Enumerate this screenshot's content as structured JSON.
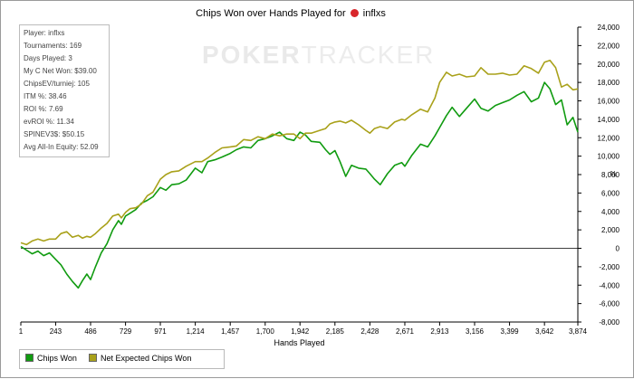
{
  "window": {
    "title_prefix": "Chips Won over Hands Played for",
    "player_name": "inflxs"
  },
  "stats_box": {
    "rows": [
      "Player: inflxs",
      "Tournaments: 169",
      "Days Played: 3",
      "My C Net Won: $39.00",
      "ChipsEV/turniej: 105",
      "ITM %: 38.46",
      "ROI %: 7.69",
      "evROI %: 11.34",
      "SPINEV3$: $50.15",
      "Avg All-In Equity: 52.09"
    ]
  },
  "watermark": {
    "part1": "POKER",
    "part2": "TRACKER"
  },
  "legend": {
    "items": [
      {
        "label": "Chips Won",
        "color": "#109b10"
      },
      {
        "label": "Net Expected Chips Won",
        "color": "#a9a11a"
      }
    ]
  },
  "chart_data": {
    "type": "line",
    "title": "Chips Won over Hands Played for inflxs",
    "xlabel": "Hands Played",
    "ylabel": "",
    "right_axis_unit": "%",
    "xlim": [
      1,
      3874
    ],
    "ylim": [
      -8000,
      24000
    ],
    "x_ticks": [
      1,
      243,
      486,
      729,
      971,
      1214,
      1457,
      1700,
      1942,
      2185,
      2428,
      2671,
      2913,
      3156,
      3399,
      3642,
      3874
    ],
    "x_tick_labels": [
      "1",
      "243",
      "486",
      "729",
      "971",
      "1,214",
      "1,457",
      "1,700",
      "1,942",
      "2,185",
      "2,428",
      "2,671",
      "2,913",
      "3,156",
      "3,399",
      "3,642",
      "3,874"
    ],
    "y_ticks": [
      -8000,
      -6000,
      -4000,
      -2000,
      0,
      2000,
      4000,
      6000,
      8000,
      10000,
      12000,
      14000,
      16000,
      18000,
      20000,
      22000,
      24000
    ],
    "y_tick_labels": [
      "-8,000",
      "-6,000",
      "-4,000",
      "-2,000",
      "0",
      "2,000",
      "4,000",
      "6,000",
      "8,000",
      "10,000",
      "12,000",
      "14,000",
      "16,000",
      "18,000",
      "20,000",
      "22,000",
      "24,000"
    ],
    "grid": false,
    "legend_position": "bottom-left",
    "series": [
      {
        "name": "Chips Won",
        "color": "#109b10",
        "x": [
          1,
          40,
          80,
          120,
          160,
          200,
          243,
          280,
          320,
          360,
          400,
          430,
          460,
          486,
          520,
          560,
          600,
          640,
          680,
          700,
          729,
          760,
          800,
          840,
          880,
          920,
          971,
          1010,
          1050,
          1100,
          1150,
          1214,
          1260,
          1300,
          1350,
          1400,
          1457,
          1500,
          1550,
          1600,
          1650,
          1700,
          1750,
          1800,
          1850,
          1900,
          1942,
          1980,
          2020,
          2080,
          2120,
          2150,
          2185,
          2220,
          2260,
          2300,
          2350,
          2400,
          2428,
          2460,
          2500,
          2550,
          2600,
          2650,
          2671,
          2720,
          2780,
          2830,
          2880,
          2913,
          2960,
          3000,
          3050,
          3100,
          3156,
          3200,
          3250,
          3300,
          3350,
          3399,
          3450,
          3500,
          3550,
          3600,
          3642,
          3680,
          3720,
          3760,
          3800,
          3840,
          3874
        ],
        "y": [
          200,
          -200,
          -600,
          -300,
          -800,
          -500,
          -1200,
          -1800,
          -2800,
          -3600,
          -4300,
          -3500,
          -2800,
          -3400,
          -2000,
          -500,
          500,
          2000,
          3000,
          2600,
          3500,
          3800,
          4200,
          4900,
          5200,
          5600,
          6600,
          6300,
          6900,
          7000,
          7400,
          8700,
          8200,
          9400,
          9600,
          9900,
          10300,
          10700,
          11000,
          10900,
          11700,
          11900,
          12200,
          12600,
          11900,
          11700,
          12600,
          12300,
          11600,
          11500,
          10700,
          10200,
          10600,
          9400,
          7800,
          9000,
          8700,
          8600,
          8100,
          7500,
          6900,
          8100,
          9000,
          9300,
          8900,
          10100,
          11300,
          11000,
          12200,
          13100,
          14400,
          15300,
          14300,
          15200,
          16200,
          15200,
          14900,
          15500,
          15800,
          16100,
          16600,
          17000,
          15900,
          16300,
          18000,
          17300,
          15600,
          16100,
          13400,
          14200,
          12600
        ]
      },
      {
        "name": "Net Expected Chips Won",
        "color": "#a9a11a",
        "x": [
          1,
          40,
          80,
          120,
          160,
          200,
          243,
          280,
          320,
          360,
          400,
          430,
          460,
          486,
          520,
          560,
          600,
          640,
          680,
          700,
          729,
          760,
          800,
          840,
          880,
          920,
          971,
          1010,
          1050,
          1100,
          1150,
          1214,
          1260,
          1300,
          1350,
          1400,
          1457,
          1500,
          1550,
          1600,
          1650,
          1700,
          1750,
          1800,
          1850,
          1900,
          1942,
          1980,
          2020,
          2080,
          2120,
          2150,
          2185,
          2220,
          2260,
          2300,
          2350,
          2400,
          2428,
          2460,
          2500,
          2550,
          2600,
          2650,
          2671,
          2720,
          2780,
          2830,
          2880,
          2913,
          2960,
          3000,
          3050,
          3100,
          3156,
          3200,
          3250,
          3300,
          3350,
          3399,
          3450,
          3500,
          3550,
          3600,
          3642,
          3680,
          3720,
          3760,
          3800,
          3840,
          3874
        ],
        "y": [
          600,
          400,
          800,
          1000,
          800,
          1000,
          1000,
          1600,
          1800,
          1200,
          1400,
          1100,
          1300,
          1200,
          1600,
          2200,
          2700,
          3500,
          3700,
          3300,
          3900,
          4300,
          4400,
          4800,
          5700,
          6100,
          7500,
          8000,
          8300,
          8400,
          8900,
          9400,
          9400,
          9800,
          10400,
          10900,
          11000,
          11100,
          11800,
          11700,
          12100,
          11900,
          12400,
          12200,
          12400,
          12400,
          11900,
          12500,
          12500,
          12800,
          13000,
          13500,
          13700,
          13800,
          13600,
          13900,
          13400,
          12800,
          12500,
          13000,
          13200,
          13000,
          13700,
          14000,
          13900,
          14500,
          15100,
          14800,
          16300,
          18000,
          19100,
          18700,
          18900,
          18600,
          18700,
          19600,
          18900,
          18900,
          19000,
          18800,
          18900,
          19800,
          19500,
          19000,
          20200,
          20400,
          19600,
          17500,
          17800,
          17200,
          17300
        ]
      }
    ]
  }
}
